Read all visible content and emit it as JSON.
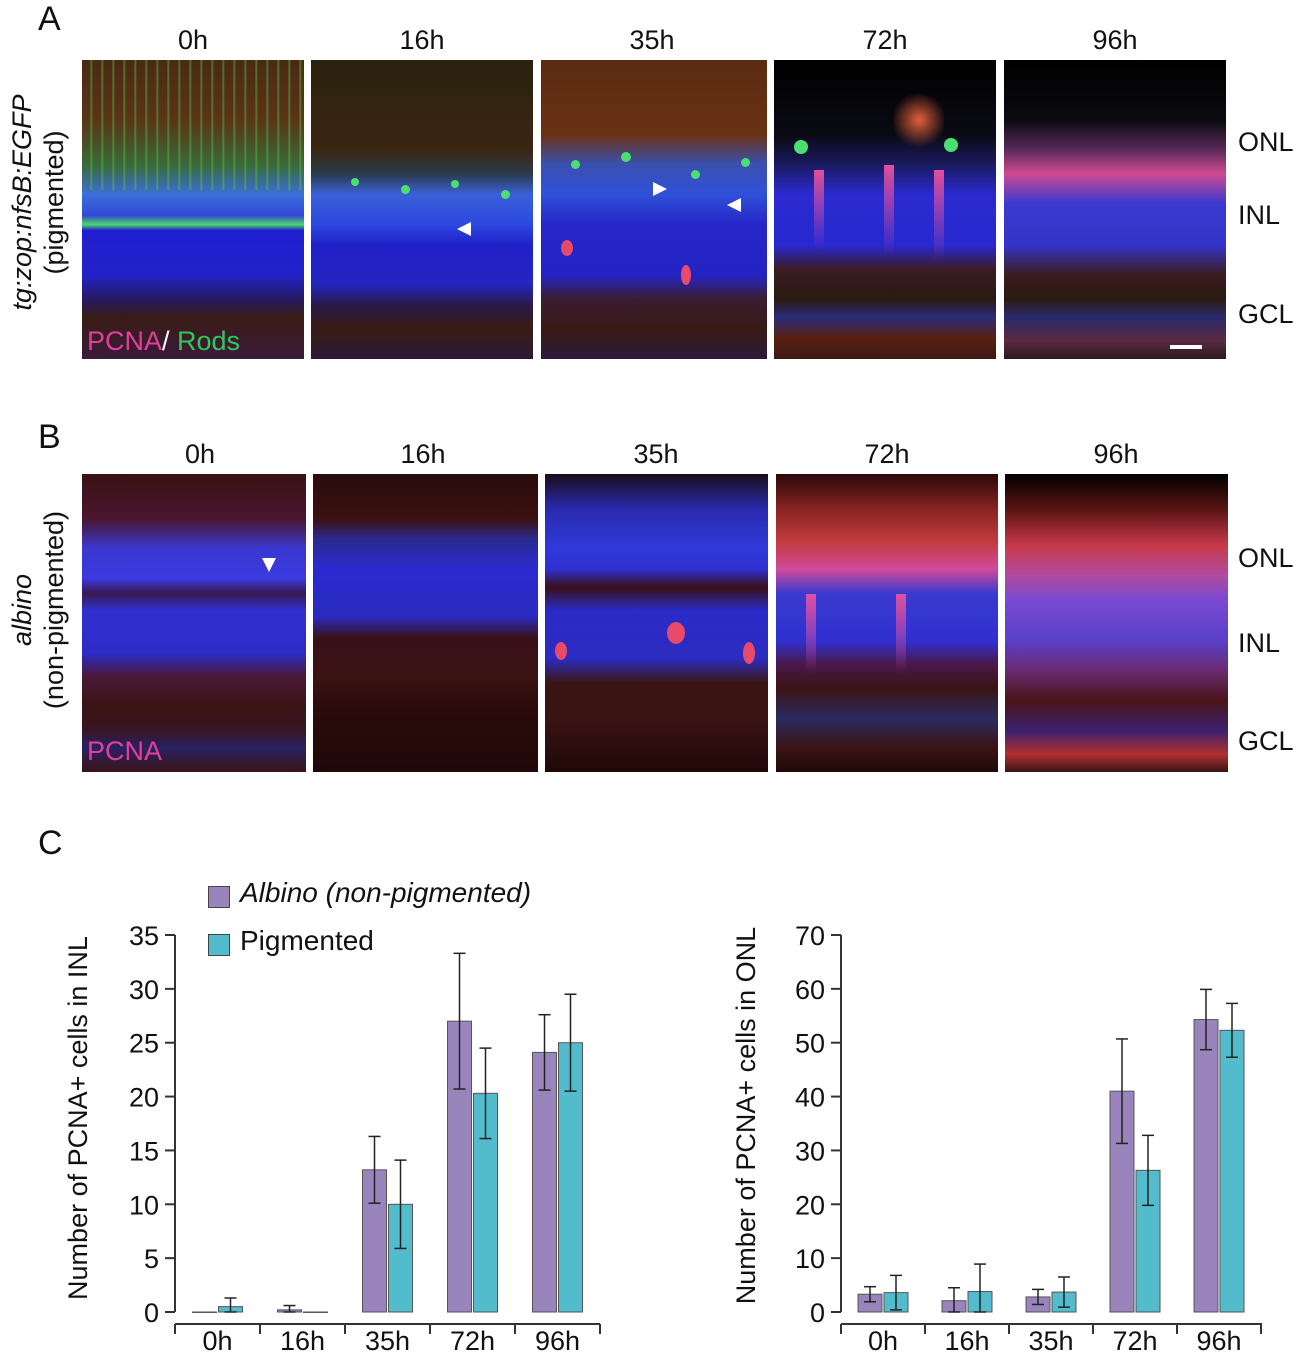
{
  "panel_a": {
    "letter": "A",
    "side_label_line1": "tg:zop:nfsB:EGFP",
    "side_label_line2": "(pigmented)",
    "timepoints": [
      "0h",
      "16h",
      "35h",
      "72h",
      "96h"
    ],
    "stain_pcna": "PCNA",
    "stain_sep": "/ ",
    "stain_rods": "Rods",
    "layers": [
      "ONL",
      "INL",
      "GCL"
    ],
    "colors": {
      "pcna": "#e0409a",
      "rods": "#2ec85c",
      "dapi": "#2a2ae8"
    }
  },
  "panel_b": {
    "letter": "B",
    "side_label_line1": "albino",
    "side_label_line2": "(non-pigmented)",
    "timepoints": [
      "0h",
      "16h",
      "35h",
      "72h",
      "96h"
    ],
    "stain_pcna": "PCNA",
    "layers": [
      "ONL",
      "INL",
      "GCL"
    ]
  },
  "panel_c": {
    "letter": "C",
    "legend": [
      "Albino (non-pigmented)",
      "Pigmented"
    ],
    "colors": {
      "albino": "#9a84bc",
      "pigmented": "#52bccc"
    }
  },
  "chart_data": [
    {
      "type": "bar",
      "ylabel": "Number of PCNA+ cells in INL",
      "categories": [
        "0h",
        "16h",
        "35h",
        "72h",
        "96h"
      ],
      "ylim": [
        0,
        35
      ],
      "yticks": [
        0,
        5,
        10,
        15,
        20,
        25,
        30,
        35
      ],
      "series": [
        {
          "name": "Albino (non-pigmented)",
          "values": [
            0,
            0.2,
            13.2,
            27,
            24.1
          ],
          "errors": [
            0,
            0.4,
            3.1,
            6.3,
            3.5
          ]
        },
        {
          "name": "Pigmented",
          "values": [
            0.5,
            0,
            10,
            20.3,
            25
          ],
          "errors": [
            0.8,
            0,
            4.1,
            4.2,
            4.5
          ]
        }
      ]
    },
    {
      "type": "bar",
      "ylabel": "Number of PCNA+ cells in ONL",
      "categories": [
        "0h",
        "16h",
        "35h",
        "72h",
        "96h"
      ],
      "ylim": [
        0,
        70
      ],
      "yticks": [
        0,
        10,
        20,
        30,
        40,
        50,
        60,
        70
      ],
      "series": [
        {
          "name": "Albino (non-pigmented)",
          "values": [
            3.3,
            2.1,
            2.8,
            41,
            54.3
          ],
          "errors": [
            1.4,
            2.4,
            1.4,
            9.7,
            5.6
          ]
        },
        {
          "name": "Pigmented",
          "values": [
            3.6,
            3.8,
            3.7,
            26.3,
            52.3
          ],
          "errors": [
            3.2,
            5.1,
            2.8,
            6.5,
            5
          ]
        }
      ]
    }
  ]
}
